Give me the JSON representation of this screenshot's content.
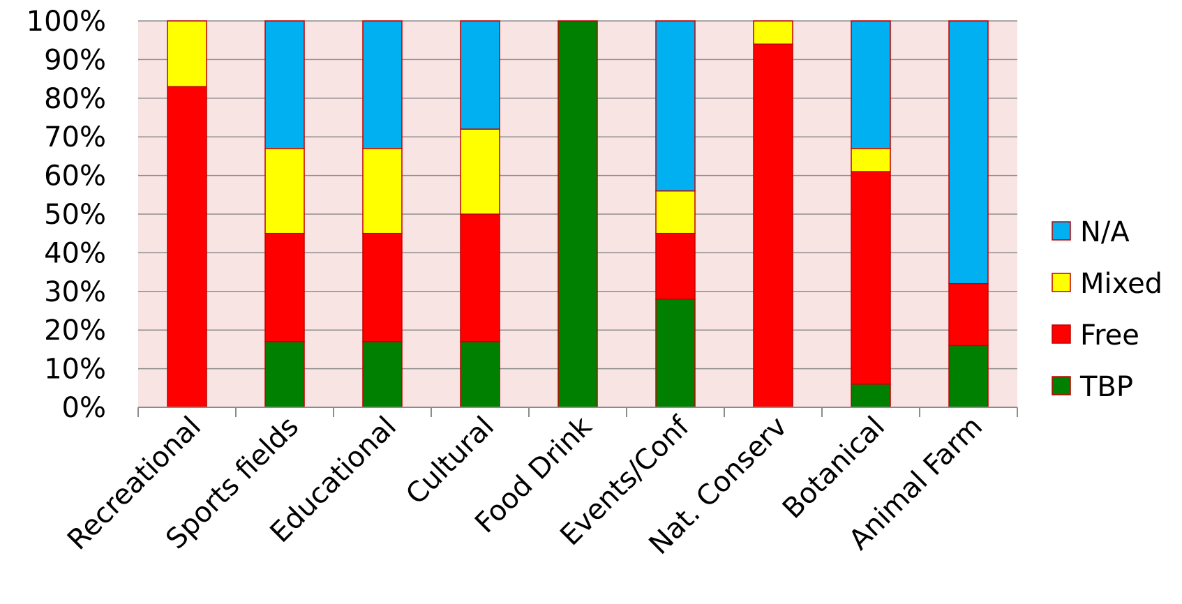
{
  "chart_data": {
    "type": "bar",
    "stacked": true,
    "percent": true,
    "categories": [
      "Recreational",
      "Sports fields",
      "Educational",
      "Cultural",
      "Food Drink",
      "Events/Conf",
      "Nat. Conserv",
      "Botanical",
      "Animal Farm"
    ],
    "series": [
      {
        "name": "TBP",
        "color": "#008000",
        "values": [
          0,
          17,
          17,
          17,
          100,
          28,
          0,
          6,
          16
        ]
      },
      {
        "name": "Free",
        "color": "#ff0000",
        "values": [
          83,
          28,
          28,
          33,
          0,
          17,
          94,
          55,
          16
        ]
      },
      {
        "name": "Mixed",
        "color": "#ffff00",
        "values": [
          17,
          22,
          22,
          22,
          0,
          11,
          6,
          6,
          0
        ]
      },
      {
        "name": "N/A",
        "color": "#00b0f0",
        "values": [
          0,
          33,
          33,
          28,
          0,
          44,
          0,
          33,
          68
        ]
      }
    ],
    "yticks": [
      "0%",
      "10%",
      "20%",
      "30%",
      "40%",
      "50%",
      "60%",
      "70%",
      "80%",
      "90%",
      "100%"
    ],
    "ylim": [
      0,
      100
    ],
    "grid": true,
    "legend_position": "right",
    "plot_background": "#f9e4e4",
    "bar_border_color": "#c00000"
  }
}
